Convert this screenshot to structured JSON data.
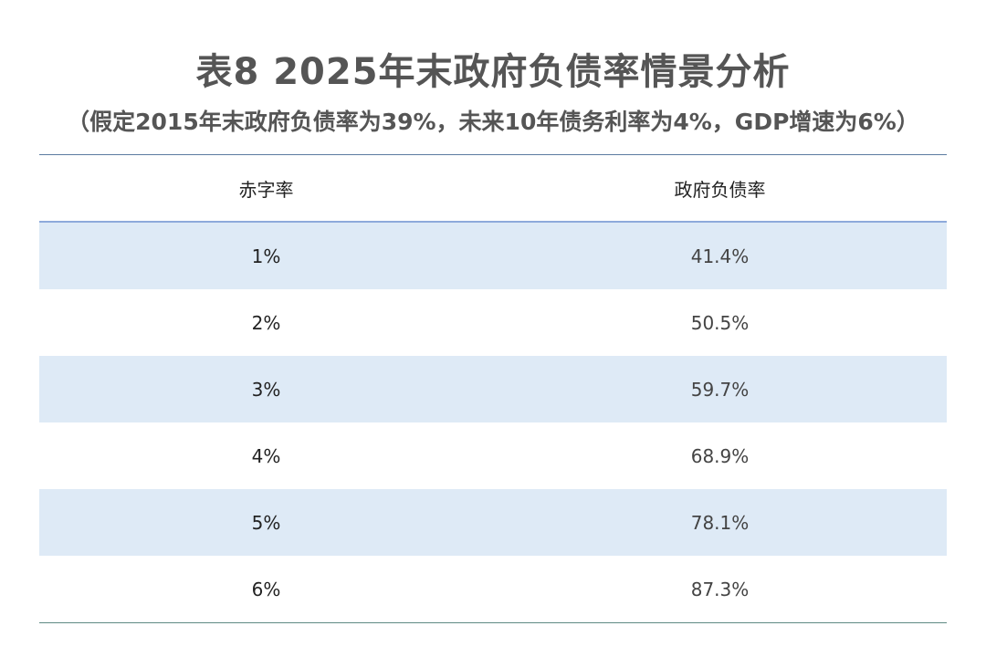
{
  "title": "表8 2025年末政府负债率情景分析",
  "subtitle": "（假定2015年末政府负债率为39%，未来10年债务利率为4%，GDP增速为6%）",
  "colors": {
    "stripe": "#deeaf6",
    "header_rule": "#8eaadb",
    "top_rule": "#5b7aa0"
  },
  "chart_data": {
    "type": "table",
    "columns": [
      "赤字率",
      "政府负债率"
    ],
    "rows": [
      [
        "1%",
        "41.4%"
      ],
      [
        "2%",
        "50.5%"
      ],
      [
        "3%",
        "59.7%"
      ],
      [
        "4%",
        "68.9%"
      ],
      [
        "5%",
        "78.1%"
      ],
      [
        "6%",
        "87.3%"
      ]
    ]
  }
}
